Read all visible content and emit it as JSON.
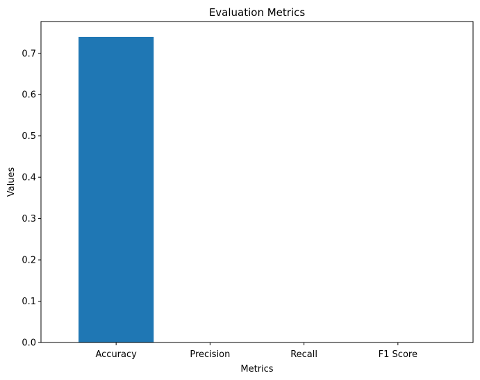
{
  "chart_data": {
    "type": "bar",
    "title": "Evaluation Metrics",
    "xlabel": "Metrics",
    "ylabel": "Values",
    "categories": [
      "Accuracy",
      "Precision",
      "Recall",
      "F1 Score"
    ],
    "values": [
      0.74,
      0,
      0,
      0
    ],
    "ylim": [
      0,
      0.777
    ],
    "yticks": [
      "0.0",
      "0.1",
      "0.2",
      "0.3",
      "0.4",
      "0.5",
      "0.6",
      "0.7"
    ],
    "bar_color": "#1f77b4",
    "grid": false,
    "legend": "none"
  }
}
